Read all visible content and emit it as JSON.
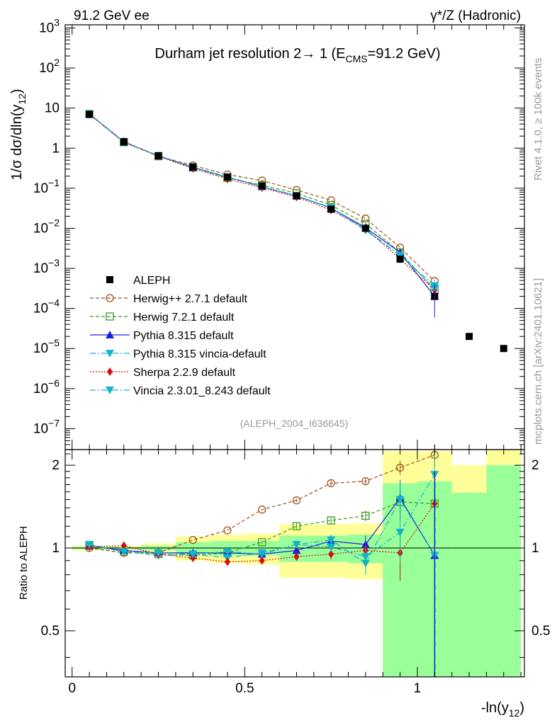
{
  "header": {
    "left": "91.2 GeV ee",
    "right": "γ*/Z (Hadronic)",
    "title": "Durham jet resolution 2→ 1 (E",
    "title_sub": "CMS",
    "title_tail": "=91.2 GeV)",
    "side_top": "Rivet 4.1.0, ≥ 100k events",
    "side_bottom": "mcplots.cern.ch [arXiv:2401.10621]",
    "analysis": "(ALEPH_2004_I636645)"
  },
  "axes": {
    "main_ylabel": "1/σ  dσ/dln(y",
    "main_ylabel_sub": "12",
    "main_ylabel_tail": ")",
    "ratio_ylabel": "Ratio to ALEPH",
    "xlabel": "-ln(y",
    "xlabel_sub": "12",
    "xlabel_tail": ")"
  },
  "chart_data": {
    "type": "line",
    "title": "Durham jet resolution 2→ 1 (ECMS=91.2 GeV)",
    "xlim": [
      -0.02,
      1.31
    ],
    "ylim": [
      3e-08,
      1200
    ],
    "yscale": "log",
    "ratio_ylim": [
      0.34,
      2.28
    ],
    "x_ticks": [
      "0",
      "0.5",
      "1"
    ],
    "x_tick_values": [
      0,
      0.5,
      1
    ],
    "y_ticks": [
      {
        "v": 1000.0,
        "label": "10",
        "exp": "3"
      },
      {
        "v": 100.0,
        "label": "10",
        "exp": "2"
      },
      {
        "v": 10,
        "label": "10",
        "exp": ""
      },
      {
        "v": 1,
        "label": "1",
        "exp": ""
      },
      {
        "v": 0.1,
        "label": "10",
        "exp": "−1"
      },
      {
        "v": 0.01,
        "label": "10",
        "exp": "−2"
      },
      {
        "v": 0.001,
        "label": "10",
        "exp": "−3"
      },
      {
        "v": 0.0001,
        "label": "10",
        "exp": "−4"
      },
      {
        "v": 1e-05,
        "label": "10",
        "exp": "−5"
      },
      {
        "v": 1e-06,
        "label": "10",
        "exp": "−6"
      },
      {
        "v": 1e-07,
        "label": "10",
        "exp": "−7"
      }
    ],
    "ratio_ticks": [
      {
        "v": 2,
        "label": "2"
      },
      {
        "v": 1,
        "label": "1"
      },
      {
        "v": 0.5,
        "label": "0.5"
      }
    ],
    "bin_edges": [
      0,
      0.1,
      0.2,
      0.3,
      0.4,
      0.5,
      0.6,
      0.7,
      0.8,
      0.9,
      1.0,
      1.1,
      1.2,
      1.3
    ],
    "data": {
      "name": "ALEPH",
      "x": [
        0.05,
        0.15,
        0.25,
        0.35,
        0.45,
        0.55,
        0.65,
        0.75,
        0.85,
        0.95,
        1.05,
        1.15,
        1.25
      ],
      "y": [
        7.0,
        1.45,
        0.65,
        0.34,
        0.19,
        0.115,
        0.065,
        0.03,
        0.01,
        0.0017,
        0.0002,
        2e-05,
        1e-05
      ]
    },
    "bands": {
      "yellow": [
        [
          0.98,
          1.02
        ],
        [
          0.98,
          1.02
        ],
        [
          0.96,
          1.04
        ],
        [
          0.9,
          1.1
        ],
        [
          0.88,
          1.12
        ],
        [
          0.87,
          1.13
        ],
        [
          0.78,
          1.22
        ],
        [
          0.78,
          1.22
        ],
        [
          0.77,
          1.23
        ],
        [
          0.34,
          2.25
        ],
        [
          0.34,
          2.25
        ],
        [
          0.34,
          2.0
        ],
        [
          0.34,
          2.28
        ]
      ],
      "green": [
        [
          0.99,
          1.01
        ],
        [
          0.99,
          1.01
        ],
        [
          0.98,
          1.02
        ],
        [
          0.95,
          1.05
        ],
        [
          0.94,
          1.06
        ],
        [
          0.94,
          1.06
        ],
        [
          0.89,
          1.11
        ],
        [
          0.89,
          1.11
        ],
        [
          0.88,
          1.12
        ],
        [
          0.34,
          1.72
        ],
        [
          0.34,
          1.75
        ],
        [
          0.34,
          1.59
        ],
        [
          0.34,
          2.0
        ]
      ]
    },
    "series": [
      {
        "name": "Herwig++ 2.7.1 default",
        "color": "#a0521e",
        "dash": "5,3",
        "marker": "circle-open",
        "x": [
          0.05,
          0.15,
          0.25,
          0.35,
          0.45,
          0.55,
          0.65,
          0.75,
          0.85,
          0.95,
          1.05
        ],
        "values": [
          7.0,
          1.4,
          0.63,
          0.37,
          0.22,
          0.155,
          0.09,
          0.05,
          0.0175,
          0.0033,
          0.00048
        ],
        "ratio": [
          1.0,
          0.96,
          0.96,
          1.07,
          1.16,
          1.38,
          1.49,
          1.72,
          1.75,
          1.96,
          2.18
        ],
        "ratio_err": [
          0.01,
          0.01,
          0.01,
          0.01,
          0.01,
          0.01,
          0.02,
          0.04,
          0.05,
          0.12,
          0.2
        ]
      },
      {
        "name": "Herwig 7.2.1 default",
        "color": "#3c9b1e",
        "dash": "5,3",
        "marker": "square-open",
        "x": [
          0.05,
          0.15,
          0.25,
          0.35,
          0.45,
          0.55,
          0.65,
          0.75,
          0.85,
          0.95,
          1.05
        ],
        "values": [
          7.1,
          1.41,
          0.63,
          0.33,
          0.18,
          0.12,
          0.075,
          0.038,
          0.013,
          0.0025,
          0.00029
        ],
        "ratio": [
          1.02,
          0.97,
          0.95,
          0.94,
          0.96,
          1.05,
          1.2,
          1.26,
          1.31,
          1.47,
          1.45
        ],
        "ratio_err": [
          0.01,
          0.01,
          0.01,
          0.01,
          0.01,
          0.02,
          0.03,
          0.04,
          0.06,
          0.15,
          0.3
        ]
      },
      {
        "name": "Pythia 8.315 default",
        "color": "#1e1edc",
        "dash": "",
        "marker": "triangle-up",
        "x": [
          0.05,
          0.15,
          0.25,
          0.35,
          0.45,
          0.55,
          0.65,
          0.75,
          0.85,
          0.95,
          1.05
        ],
        "values": [
          7.1,
          1.42,
          0.64,
          0.33,
          0.19,
          0.11,
          0.064,
          0.032,
          0.0104,
          0.0025,
          0.0002
        ],
        "ratio": [
          1.02,
          0.98,
          0.96,
          0.96,
          0.96,
          0.95,
          0.98,
          1.06,
          1.03,
          1.52,
          0.94
        ],
        "ratio_err": [
          0.01,
          0.01,
          0.01,
          0.01,
          0.01,
          0.02,
          0.03,
          0.05,
          0.08,
          0.25,
          0.7
        ]
      },
      {
        "name": "Pythia 8.315 vincia-default",
        "color": "#14b4c8",
        "dash": "8,3,2,3",
        "marker": "triangle-down",
        "x": [
          0.05,
          0.15,
          0.25,
          0.35,
          0.45,
          0.55,
          0.65,
          0.75,
          0.85,
          0.95,
          1.05
        ],
        "values": [
          7.1,
          1.42,
          0.64,
          0.33,
          0.19,
          0.11,
          0.064,
          0.032,
          0.0088,
          0.0021,
          0.00037
        ],
        "ratio": [
          1.02,
          0.97,
          0.94,
          0.95,
          0.92,
          0.96,
          1.03,
          1.07,
          0.88,
          1.5,
          0.94
        ],
        "ratio_err": [
          0.01,
          0.01,
          0.01,
          0.01,
          0.01,
          0.02,
          0.03,
          0.05,
          0.08,
          0.25,
          0.7
        ]
      },
      {
        "name": "Sherpa 2.2.9 default",
        "color": "#dc0a0a",
        "dash": "2,2",
        "marker": "diamond",
        "x": [
          0.05,
          0.15,
          0.25,
          0.35,
          0.45,
          0.55,
          0.65,
          0.75,
          0.85,
          0.95,
          1.05
        ],
        "values": [
          7.1,
          1.47,
          0.63,
          0.31,
          0.17,
          0.103,
          0.06,
          0.0285,
          0.0099,
          0.0017,
          0.00029
        ],
        "ratio": [
          1.01,
          1.02,
          0.95,
          0.92,
          0.89,
          0.9,
          0.93,
          0.95,
          0.98,
          0.96,
          1.45
        ],
        "ratio_err": [
          0.01,
          0.01,
          0.01,
          0.01,
          0.01,
          0.02,
          0.03,
          0.04,
          0.06,
          0.2,
          0.3
        ]
      },
      {
        "name": "Vincia 2.3.01_8.243 default",
        "color": "#14b4c8",
        "dash": "8,3,2,3",
        "marker": "triangle-down",
        "x": [
          0.05,
          0.15,
          0.25,
          0.35,
          0.45,
          0.55,
          0.65,
          0.75,
          0.85,
          0.95,
          1.05
        ],
        "values": [
          7.2,
          1.42,
          0.65,
          0.34,
          0.19,
          0.11,
          0.065,
          0.033,
          0.0095,
          0.0021,
          0.00032
        ],
        "ratio": [
          1.03,
          0.97,
          0.96,
          0.95,
          0.97,
          0.95,
          1.03,
          1.01,
          0.93,
          1.14,
          1.85
        ],
        "ratio_err": [
          0.01,
          0.01,
          0.01,
          0.01,
          0.01,
          0.02,
          0.03,
          0.05,
          0.08,
          0.25,
          0.5
        ]
      }
    ]
  }
}
